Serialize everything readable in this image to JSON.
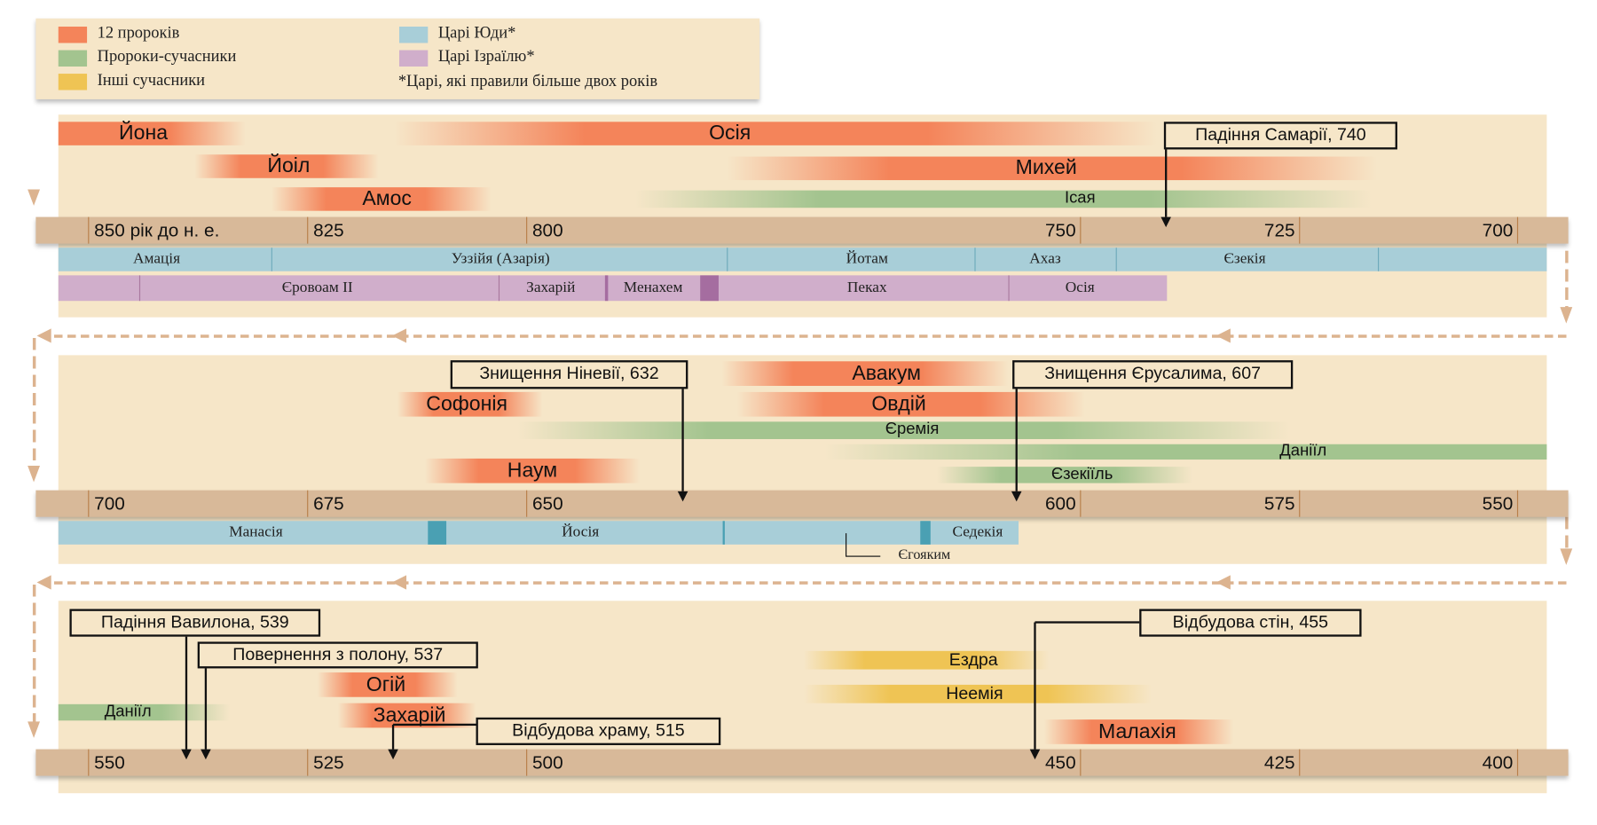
{
  "colors": {
    "prophets12": "#f4845a",
    "contemporary_prophets": "#a3c48f",
    "other_contemporaries": "#efc454",
    "judah_kings": "#a8ced8",
    "israel_kings": "#d0aecb",
    "axis": "#d8b999",
    "panel": "#f6e6c8"
  },
  "legend": {
    "items": [
      "12 пророків",
      "Пророки-сучасники",
      "Інші сучасники",
      "Царі Юди*",
      "Царі Ізраїлю*"
    ],
    "note": "*Царі, які правили більше двох років"
  },
  "rows": [
    {
      "ticks": [
        "850 рік до н. е.",
        "825",
        "800",
        "750",
        "725",
        "700"
      ],
      "bars": [
        "Йона",
        "Осія",
        "Йоіл",
        "Михей",
        "Амос",
        "Ісая"
      ],
      "callouts": [
        "Падіння Самарії, 740"
      ],
      "judah_kings": [
        "Амація",
        "Уззійя (Азарія)",
        "Йотам",
        "Ахаз",
        "Єзекія"
      ],
      "israel_kings": [
        "Єровоам II",
        "Захарій",
        "Менахем",
        "Пеках",
        "Осія"
      ]
    },
    {
      "ticks": [
        "700",
        "675",
        "650",
        "600",
        "575",
        "550"
      ],
      "bars": [
        "Авакум",
        "Софонія",
        "Овдій",
        "Єремія",
        "Даніїл",
        "Єзекіїль",
        "Наум"
      ],
      "callouts": [
        "Знищення Ніневії, 632",
        "Знищення Єрусалима, 607"
      ],
      "judah_kings": [
        "Манасія",
        "Йосія",
        "Седекія",
        "Єгояким"
      ]
    },
    {
      "ticks": [
        "550",
        "525",
        "500",
        "450",
        "425",
        "400"
      ],
      "bars": [
        "Огій",
        "Даніїл",
        "Захарій",
        "Малахія",
        "Ездра",
        "Неемія"
      ],
      "callouts": [
        "Падіння Вавилона, 539",
        "Повернення з полону, 537",
        "Відбудова храму, 515",
        "Відбудова стін, 455"
      ]
    }
  ]
}
